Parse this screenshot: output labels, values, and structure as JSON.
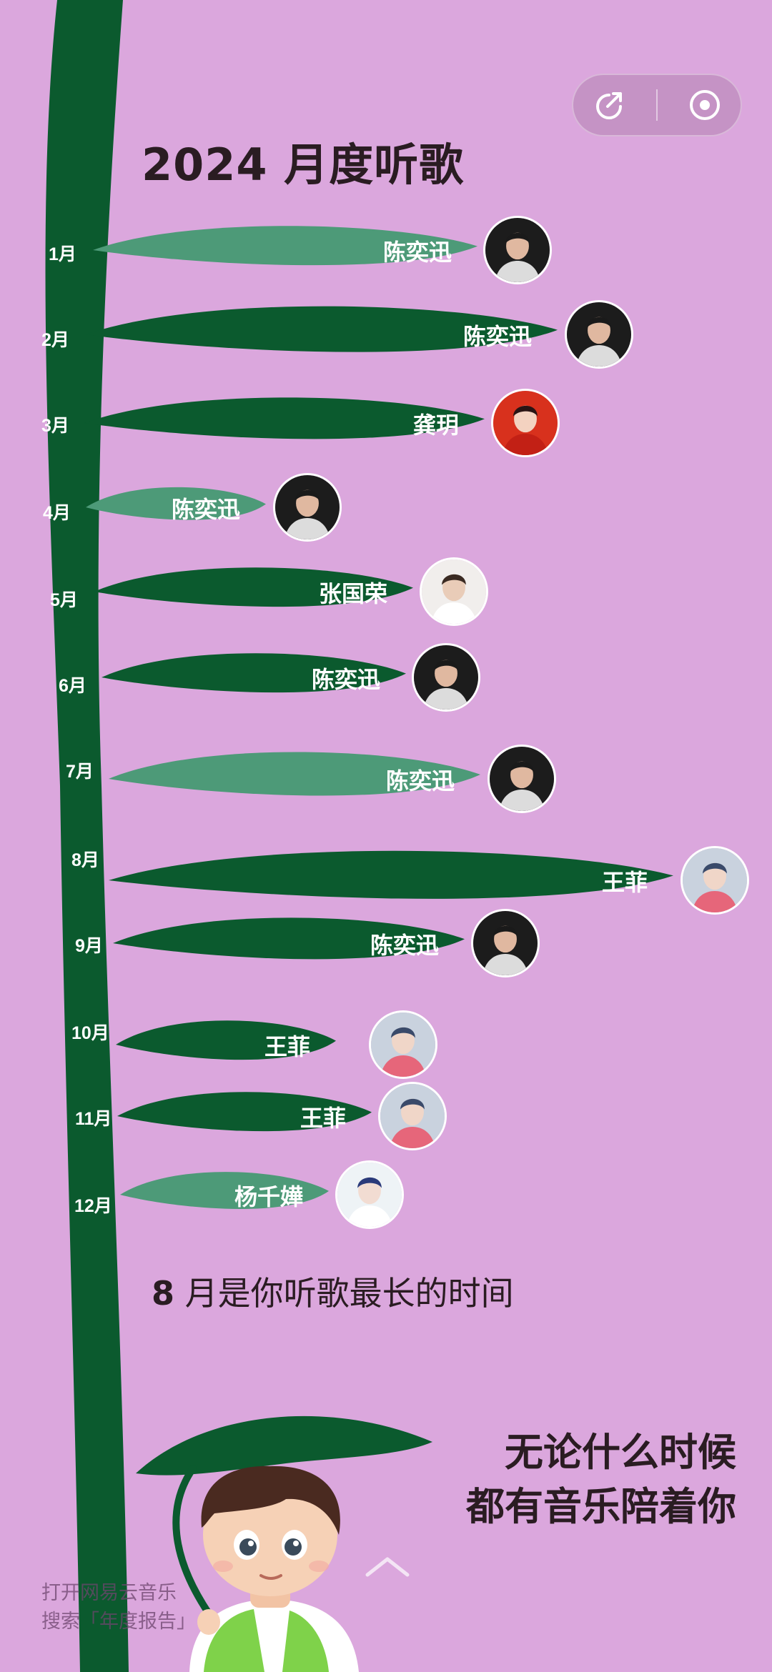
{
  "header": {
    "title": "2024 月度听歌",
    "share_icon": "share-icon",
    "close_icon": "target-close-icon"
  },
  "months": [
    {
      "label": "1月",
      "artist": "陈奕迅",
      "tone": "light"
    },
    {
      "label": "2月",
      "artist": "陈奕迅",
      "tone": "dark"
    },
    {
      "label": "3月",
      "artist": "龚玥",
      "tone": "dark"
    },
    {
      "label": "4月",
      "artist": "陈奕迅",
      "tone": "light"
    },
    {
      "label": "5月",
      "artist": "张国荣",
      "tone": "dark"
    },
    {
      "label": "6月",
      "artist": "陈奕迅",
      "tone": "dark"
    },
    {
      "label": "7月",
      "artist": "陈奕迅",
      "tone": "light"
    },
    {
      "label": "8月",
      "artist": "王菲",
      "tone": "dark"
    },
    {
      "label": "9月",
      "artist": "陈奕迅",
      "tone": "dark"
    },
    {
      "label": "10月",
      "artist": "王菲",
      "tone": "dark"
    },
    {
      "label": "11月",
      "artist": "王菲",
      "tone": "dark"
    },
    {
      "label": "12月",
      "artist": "杨千嬅",
      "tone": "light"
    }
  ],
  "summary": {
    "month": "8",
    "text": " 月是你听歌最长的时间"
  },
  "closing": {
    "line1": "无论什么时候",
    "line2": "都有音乐陪着你"
  },
  "footer": {
    "line1": "打开网易云音乐",
    "line2": "搜索「年度报告」"
  },
  "colors": {
    "background": "#dba7dd",
    "stem_dark": "#0b5a2e",
    "leaf_light": "#4d9a78",
    "text_dark": "#2a1c22"
  }
}
